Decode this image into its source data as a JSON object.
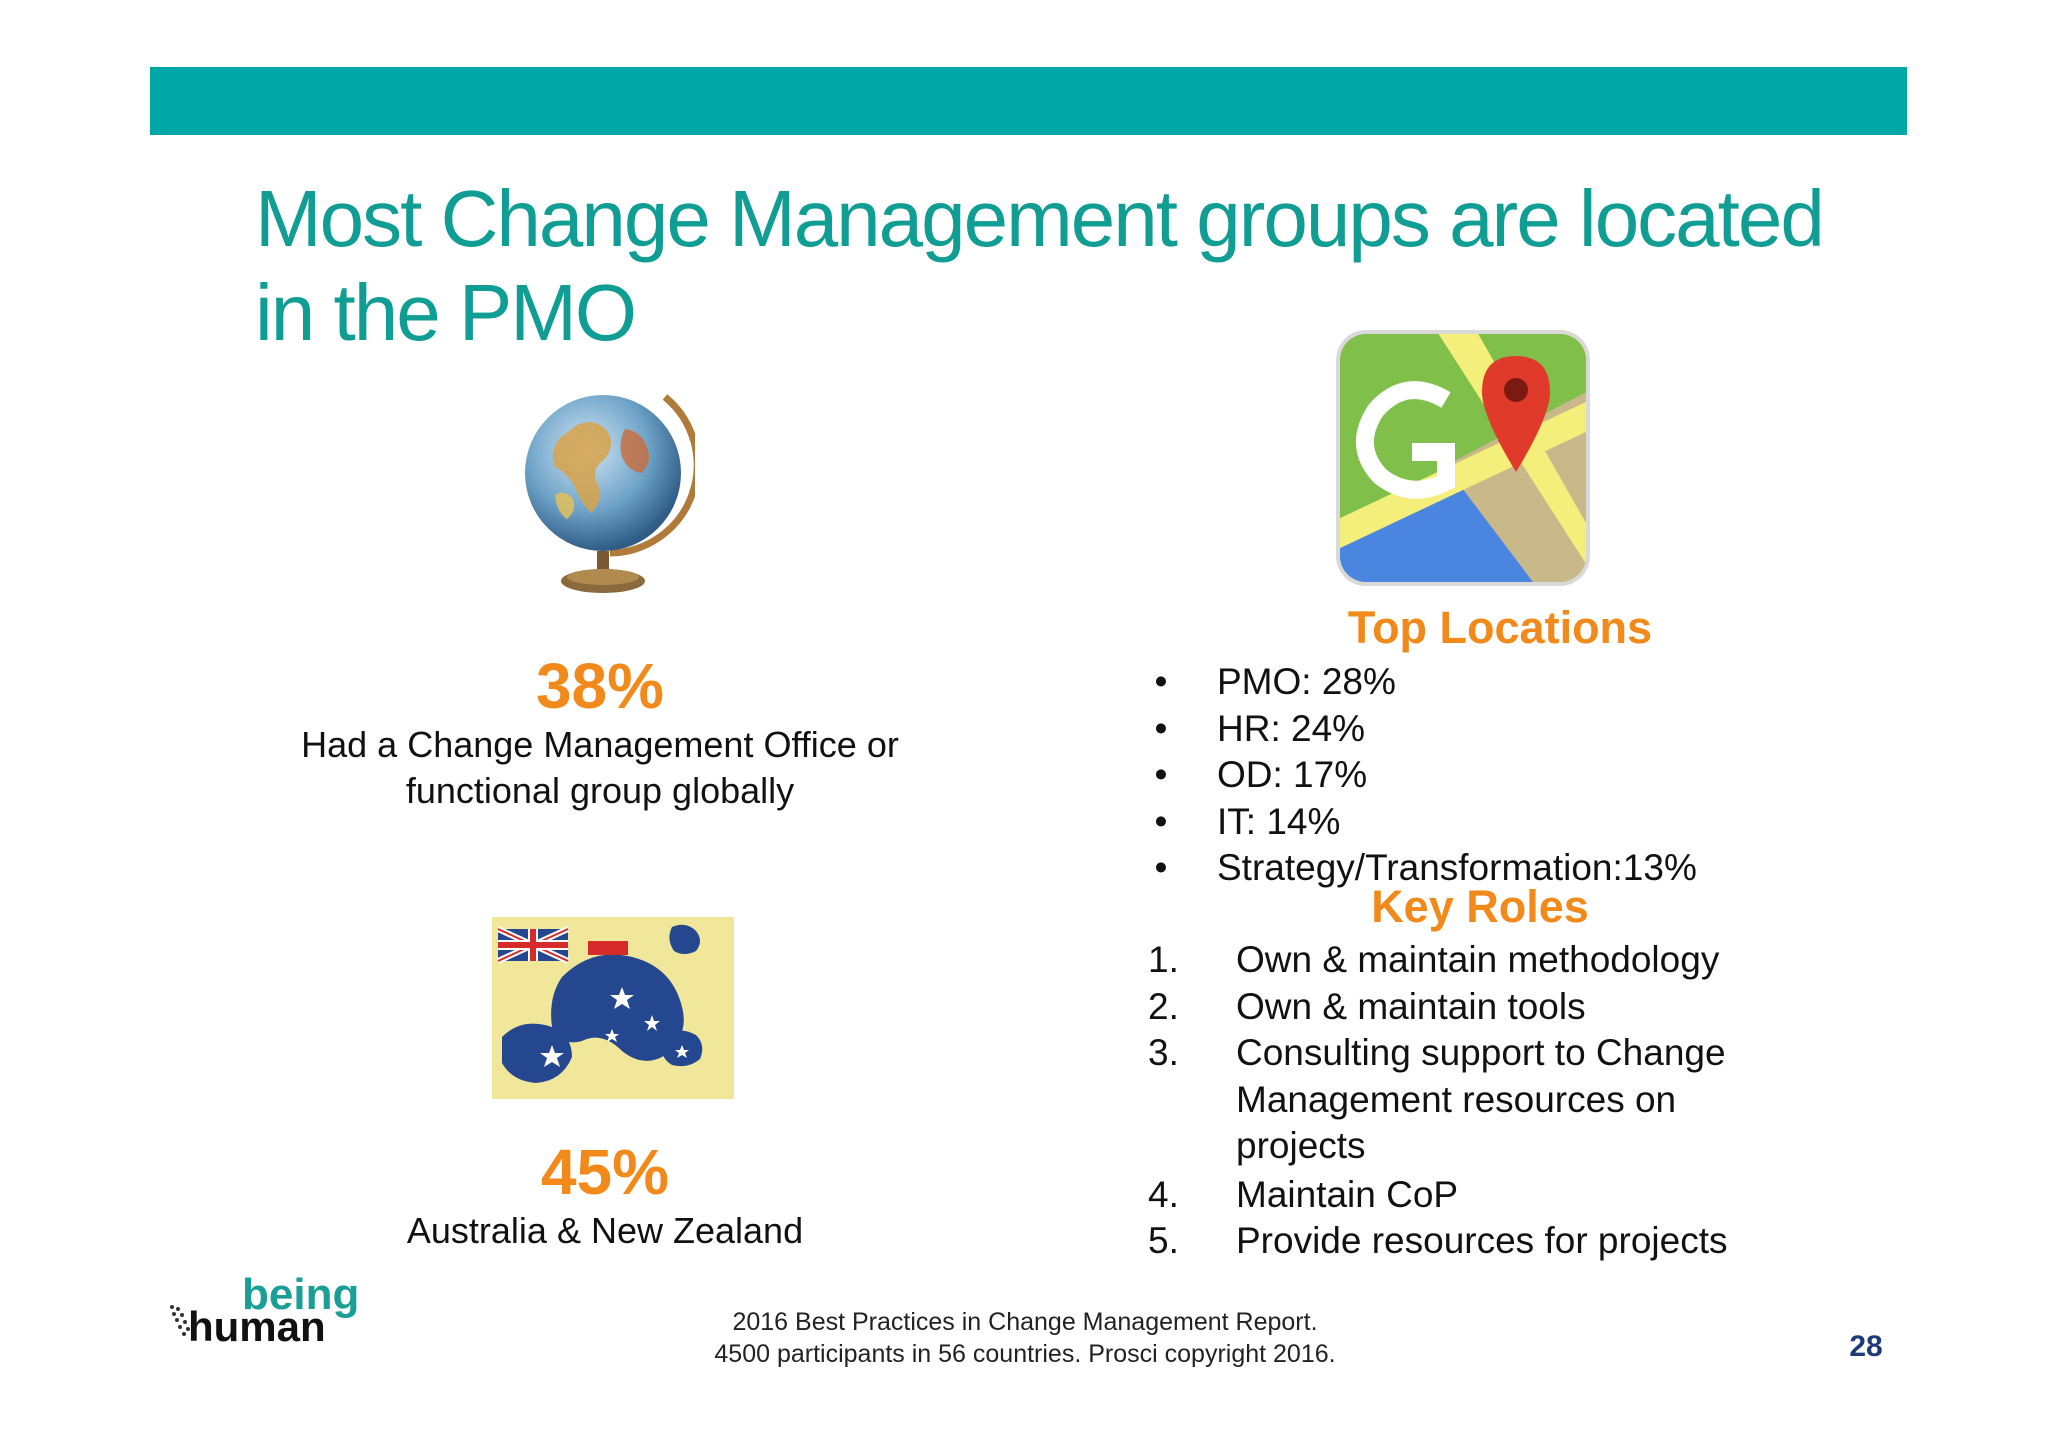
{
  "slide": {
    "title_line1": "Most Change Management groups are located",
    "title_line2": "in the PMO",
    "colors": {
      "band": "#00a7a7",
      "title": "#0f9d94",
      "accent": "#f28a1b",
      "page_number": "#1e3a78"
    }
  },
  "global_stat": {
    "image_icon": "globe-icon",
    "percent": "38%",
    "desc_line1": "Had a Change Management Office or",
    "desc_line2": "functional group globally"
  },
  "anz_stat": {
    "image_icon": "australia-kangaroo-flag-icon",
    "percent": "45%",
    "desc": "Australia & New Zealand"
  },
  "locations": {
    "image_icon": "google-maps-icon",
    "heading": "Top Locations",
    "items": [
      {
        "marker": "•",
        "text": "PMO: 28%"
      },
      {
        "marker": "•",
        "text": "HR: 24%"
      },
      {
        "marker": "•",
        "text": "OD: 17%"
      },
      {
        "marker": "•",
        "text": "IT: 14%"
      },
      {
        "marker": "•",
        "text": "Strategy/Transformation:13%"
      }
    ]
  },
  "roles": {
    "heading": "Key Roles",
    "items": [
      {
        "marker": "1.",
        "text": "Own & maintain methodology"
      },
      {
        "marker": "2.",
        "text": "Own & maintain tools"
      },
      {
        "marker": "3.",
        "line1": "Consulting support to Change",
        "line2": "Management resources on",
        "line3": "projects"
      },
      {
        "marker": "4.",
        "text": "Maintain CoP"
      },
      {
        "marker": "5.",
        "text": "Provide resources for projects"
      }
    ]
  },
  "logo": {
    "word1": "being",
    "word2": "human"
  },
  "footer": {
    "line1": "2016 Best Practices in Change Management Report.",
    "line2": "4500 participants in 56 countries.  Prosci copyright 2016."
  },
  "page_number": "28"
}
